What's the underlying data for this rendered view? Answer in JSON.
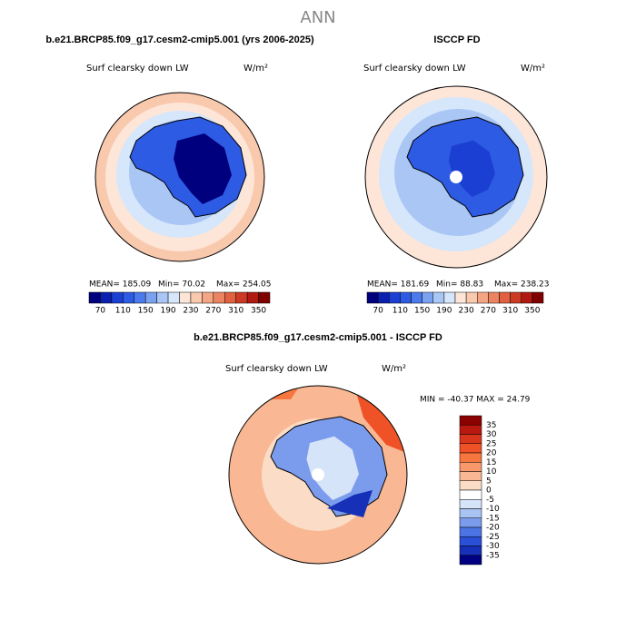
{
  "title": "ANN",
  "panels": [
    {
      "case": "b.e21.BRCP85.f09_g17.cesm2-cmip5.001 (yrs 2006-2025)",
      "variable": "Surf clearsky down LW",
      "units": "W/m²",
      "stats": [
        "MEAN= 185.09",
        "Min= 70.02",
        "Max= 254.05"
      ],
      "colorbar": {
        "labels": [
          70,
          110,
          150,
          190,
          230,
          270,
          310,
          350
        ],
        "colors": [
          "#00007f",
          "#0a1fb0",
          "#1b3fd2",
          "#2e5be3",
          "#4a7aeb",
          "#7aa2f0",
          "#a9c6f5",
          "#d6e6fb",
          "#fde6d8",
          "#f9c9ae",
          "#f4a684",
          "#ec8462",
          "#e0603f",
          "#cc3a24",
          "#b01a12",
          "#800000"
        ]
      }
    },
    {
      "case": "ISCCP FD",
      "variable": "Surf clearsky down LW",
      "units": "W/m²",
      "stats": [
        "MEAN= 181.69",
        "Min= 88.83",
        "Max= 238.23"
      ],
      "colorbar": {
        "labels": [
          70,
          110,
          150,
          190,
          230,
          270,
          310,
          350
        ],
        "colors": [
          "#00007f",
          "#0a1fb0",
          "#1b3fd2",
          "#2e5be3",
          "#4a7aeb",
          "#7aa2f0",
          "#a9c6f5",
          "#d6e6fb",
          "#fde6d8",
          "#f9c9ae",
          "#f4a684",
          "#ec8462",
          "#e0603f",
          "#cc3a24",
          "#b01a12",
          "#800000"
        ]
      }
    }
  ],
  "difference": {
    "case": "b.e21.BRCP85.f09_g17.cesm2-cmip5.001 - ISCCP FD",
    "variable": "Surf clearsky down LW",
    "units": "W/m²",
    "stats": "MIN = -40.37 MAX =  24.79",
    "colorbar": {
      "labels": [
        35,
        30,
        25,
        20,
        15,
        10,
        5,
        0,
        -5,
        -10,
        -15,
        -20,
        -25,
        -30,
        -35
      ],
      "colors": [
        "#8b0000",
        "#b81810",
        "#d8361c",
        "#ee5226",
        "#f7763f",
        "#f9986a",
        "#f9b893",
        "#fbdcc6",
        "#ffffff",
        "#d6e4fa",
        "#a9c3f3",
        "#7b9cec",
        "#4d74e4",
        "#2a50d8",
        "#1630b8",
        "#000080"
      ]
    }
  }
}
